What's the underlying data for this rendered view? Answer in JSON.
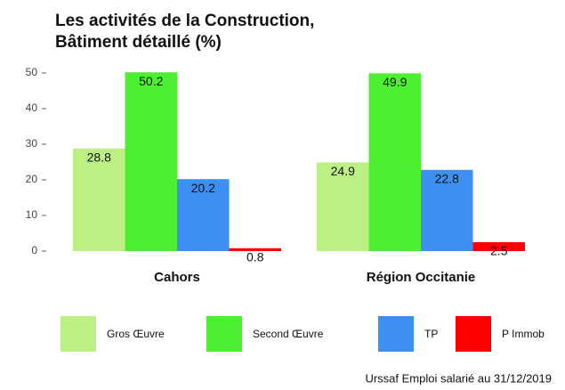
{
  "chart_data": {
    "type": "bar",
    "title": [
      "Les activités de la Construction,",
      "Bâtiment détaillé (%)"
    ],
    "categories": [
      "Cahors",
      "Région Occitanie"
    ],
    "series": [
      {
        "name": "Gros Œuvre",
        "color": "#bdf084",
        "values": [
          28.8,
          24.9
        ]
      },
      {
        "name": "Second Œuvre",
        "color": "#4cf030",
        "values": [
          50.2,
          49.9
        ]
      },
      {
        "name": "TP",
        "color": "#3d8ff2",
        "values": [
          20.2,
          22.8
        ]
      },
      {
        "name": "P Immob",
        "color": "#ff0000",
        "values": [
          0.8,
          2.5
        ]
      }
    ],
    "ylim": [
      -2,
      52
    ],
    "yticks": [
      0,
      10,
      20,
      30,
      40,
      50
    ],
    "grid": false,
    "legend": "bottom",
    "caption": "Urssaf Emploi salarié au 31/12/2019"
  }
}
